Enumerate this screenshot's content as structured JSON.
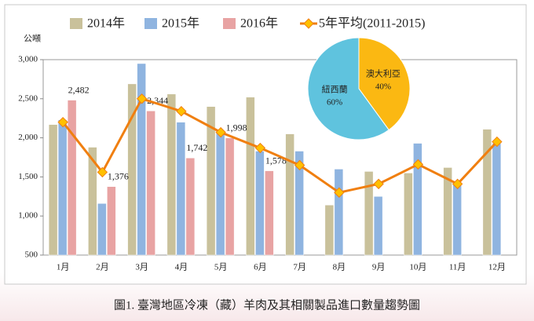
{
  "chart_data": [
    {
      "type": "bar",
      "y_label": "公噸",
      "categories": [
        "1月",
        "2月",
        "3月",
        "4月",
        "5月",
        "6月",
        "7月",
        "8月",
        "9月",
        "10月",
        "11月",
        "12月"
      ],
      "series": [
        {
          "name": "2014年",
          "color": "#c9c19b",
          "values": [
            2170,
            1880,
            2690,
            2560,
            2400,
            2520,
            2050,
            1140,
            1570,
            1550,
            1620,
            2110
          ]
        },
        {
          "name": "2015年",
          "color": "#8fb4e0",
          "values": [
            2230,
            1160,
            2950,
            2200,
            2080,
            1830,
            1830,
            1600,
            1250,
            1930,
            1420,
            1930
          ]
        },
        {
          "name": "2016年",
          "color": "#e8a3a3",
          "values": [
            2482,
            1376,
            2344,
            1742,
            1998,
            1578,
            null,
            null,
            null,
            null,
            null,
            null
          ],
          "value_labels": [
            "2,482",
            "1,376",
            "2,344",
            "1,742",
            "1,998",
            "1,578",
            null,
            null,
            null,
            null,
            null,
            null
          ]
        },
        {
          "name": "5年平均(2011-2015)",
          "type": "line",
          "color": "#f07f10",
          "marker_color": "#ffc000",
          "values": [
            2200,
            1560,
            2500,
            2340,
            2070,
            1870,
            1650,
            1300,
            1410,
            1660,
            1410,
            1950
          ]
        }
      ],
      "ylim": [
        500,
        3000
      ],
      "yticks": [
        500,
        {
          "value": 1000,
          "label": "1,000"
        },
        {
          "value": 1500,
          "label": "1,500"
        },
        {
          "value": 2000,
          "label": "2,000"
        },
        {
          "value": 2500,
          "label": "2,500"
        },
        {
          "value": 3000,
          "label": "3,000"
        }
      ]
    },
    {
      "type": "pie",
      "categories": [
        "澳大利亞",
        "紐西蘭"
      ],
      "values": [
        40,
        60
      ],
      "value_labels": [
        "40%",
        "60%"
      ],
      "colors": [
        "#fbb812",
        "#5fc3de"
      ]
    }
  ],
  "caption": "圖1. 臺灣地區冷凍（藏）羊肉及其相關製品進口數量趨勢圖"
}
